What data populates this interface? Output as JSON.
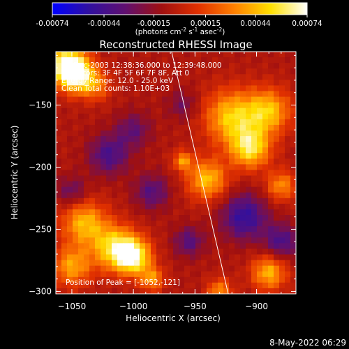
{
  "chart_data": {
    "type": "heatmap",
    "title": "Reconstructed RHESSI Image",
    "colorbar": {
      "ticks": [
        "-0.00074",
        "-0.00044",
        "-0.00015",
        "0.00015",
        "0.00044",
        "0.00074"
      ],
      "unit_label_parts": [
        "(photons cm",
        "-2",
        " s",
        "-1",
        " asec",
        "-2",
        ")"
      ],
      "range": [
        -0.00074,
        0.00074
      ],
      "colormap": [
        "#0000ff",
        "#3010a0",
        "#601070",
        "#a01010",
        "#e03000",
        "#ff8000",
        "#ffe000",
        "#ffffff"
      ]
    },
    "xlabel": "Heliocentric X (arcsec)",
    "ylabel": "Heliocentric Y (arcsec)",
    "xlim": [
      -1063,
      -868
    ],
    "ylim": [
      -302,
      -107
    ],
    "xticks": [
      {
        "value": -1050,
        "label": "−1050"
      },
      {
        "value": -1000,
        "label": "−1000"
      },
      {
        "value": -950,
        "label": "−950"
      },
      {
        "value": -900,
        "label": "−900"
      }
    ],
    "yticks": [
      {
        "value": -150,
        "label": "−150"
      },
      {
        "value": -200,
        "label": "−200"
      },
      {
        "value": -250,
        "label": "−250"
      },
      {
        "value": -300,
        "label": "−300"
      }
    ],
    "limb_line": {
      "x": [
        -969,
        -923
      ],
      "y": [
        -107,
        -302
      ]
    },
    "annotations": [
      "31-Dec-2003 12:38:36.000 to 12:39:48.000",
      "Detectors: 3F 4F 5F 6F 7F 8F, Att 0",
      "Energy Range: 12.0 - 25.0 keV",
      "Clean    Total counts: 1.10E+03"
    ],
    "peak_text": "Position of Peak = [-1052,-121]",
    "grid": false,
    "blobs": [
      {
        "x": -1055,
        "y": -118,
        "r": 16,
        "v": 0.00072
      },
      {
        "x": -1045,
        "y": -126,
        "r": 14,
        "v": 0.0006
      },
      {
        "x": -1030,
        "y": -135,
        "r": 12,
        "v": 0.0003
      },
      {
        "x": -920,
        "y": -160,
        "r": 22,
        "v": 0.00055
      },
      {
        "x": -890,
        "y": -155,
        "r": 18,
        "v": 0.0005
      },
      {
        "x": -905,
        "y": -185,
        "r": 16,
        "v": 0.0006
      },
      {
        "x": -940,
        "y": -210,
        "r": 16,
        "v": 0.00052
      },
      {
        "x": -960,
        "y": -195,
        "r": 8,
        "v": 0.0004
      },
      {
        "x": -880,
        "y": -215,
        "r": 12,
        "v": 0.0004
      },
      {
        "x": -1040,
        "y": -245,
        "r": 18,
        "v": 0.0005
      },
      {
        "x": -1015,
        "y": -265,
        "r": 18,
        "v": 0.0006
      },
      {
        "x": -1000,
        "y": -272,
        "r": 14,
        "v": 0.0007
      },
      {
        "x": -1050,
        "y": -280,
        "r": 16,
        "v": 0.00045
      },
      {
        "x": -985,
        "y": -290,
        "r": 10,
        "v": 0.0004
      },
      {
        "x": -890,
        "y": -285,
        "r": 14,
        "v": 0.0005
      },
      {
        "x": -930,
        "y": -300,
        "r": 10,
        "v": 0.0004
      },
      {
        "x": -1020,
        "y": -190,
        "r": 16,
        "v": -0.00035
      },
      {
        "x": -1000,
        "y": -170,
        "r": 14,
        "v": -0.00025
      },
      {
        "x": -985,
        "y": -220,
        "r": 14,
        "v": -0.0003
      },
      {
        "x": -910,
        "y": -240,
        "r": 18,
        "v": -0.00045
      },
      {
        "x": -880,
        "y": -260,
        "r": 14,
        "v": -0.00035
      },
      {
        "x": -955,
        "y": -260,
        "r": 12,
        "v": -0.0003
      },
      {
        "x": -1050,
        "y": -220,
        "r": 12,
        "v": -0.00025
      },
      {
        "x": -960,
        "y": -150,
        "r": 12,
        "v": -0.0002
      }
    ]
  },
  "footer": {
    "date_label": "8-May-2022 06:29"
  }
}
